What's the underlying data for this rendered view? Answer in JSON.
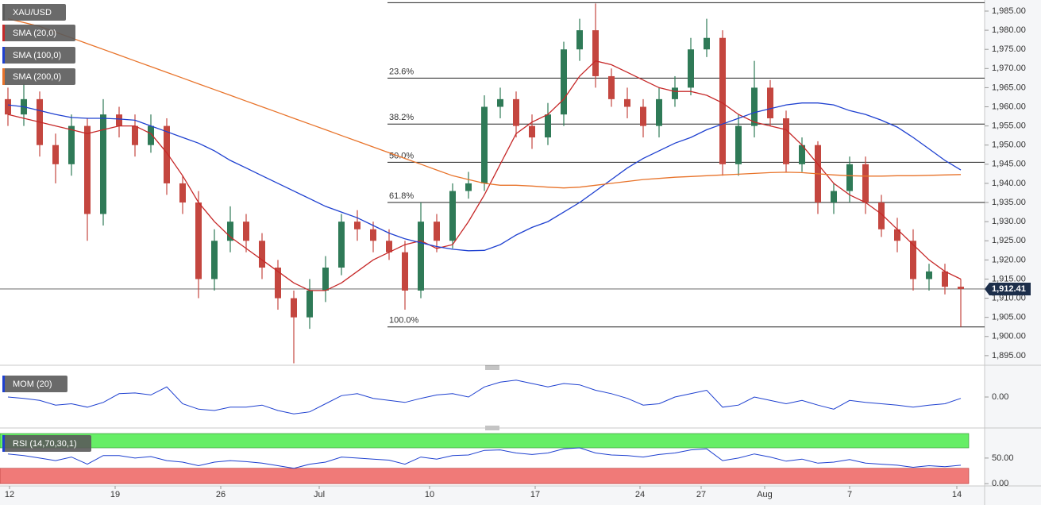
{
  "chart_data": {
    "type": "candlestick",
    "symbol": "XAU/USD",
    "up_color": "#2f7a57",
    "down_color": "#c4463f",
    "xlim": [
      0,
      62
    ],
    "xticks": [
      {
        "value": 0.6,
        "label": "12"
      },
      {
        "value": 7.25,
        "label": "19"
      },
      {
        "value": 13.9,
        "label": "26"
      },
      {
        "value": 20.1,
        "label": "Jul"
      },
      {
        "value": 27.05,
        "label": "10"
      },
      {
        "value": 33.7,
        "label": "17"
      },
      {
        "value": 40.3,
        "label": "24"
      },
      {
        "value": 44.15,
        "label": "27"
      },
      {
        "value": 48.15,
        "label": "Aug"
      },
      {
        "value": 53.5,
        "label": "7"
      },
      {
        "value": 60.25,
        "label": "14"
      }
    ],
    "ylim": [
      1892.9,
      1987.9
    ],
    "yticks": [
      {
        "value": 1895,
        "label": "1,895.00"
      },
      {
        "value": 1900,
        "label": "1,900.00"
      },
      {
        "value": 1905,
        "label": "1,905.00"
      },
      {
        "value": 1910,
        "label": "1,910.00"
      },
      {
        "value": 1915,
        "label": "1,915.00"
      },
      {
        "value": 1920,
        "label": "1,920.00"
      },
      {
        "value": 1925,
        "label": "1,925.00"
      },
      {
        "value": 1930,
        "label": "1,930.00"
      },
      {
        "value": 1935,
        "label": "1,935.00"
      },
      {
        "value": 1940,
        "label": "1,940.00"
      },
      {
        "value": 1945,
        "label": "1,945.00"
      },
      {
        "value": 1950,
        "label": "1,950.00"
      },
      {
        "value": 1955,
        "label": "1,955.00"
      },
      {
        "value": 1960,
        "label": "1,960.00"
      },
      {
        "value": 1965,
        "label": "1,965.00"
      },
      {
        "value": 1970,
        "label": "1,970.00"
      },
      {
        "value": 1975,
        "label": "1,975.00"
      },
      {
        "value": 1980,
        "label": "1,980.00"
      },
      {
        "value": 1985,
        "label": "1,985.00"
      }
    ],
    "open": [
      1962,
      1958,
      1962,
      1950,
      1945,
      1955,
      1932,
      1958,
      1955,
      1950,
      1955,
      1940,
      1935,
      1915,
      1925,
      1930,
      1925,
      1918,
      1910,
      1905,
      1912,
      1918,
      1930,
      1928,
      1925,
      1922,
      1912,
      1930,
      1925,
      1938,
      1940,
      1960,
      1962,
      1955,
      1952,
      1958,
      1975,
      1980,
      1968,
      1962,
      1960,
      1955,
      1962,
      1965,
      1975,
      1978,
      1945,
      1955,
      1965,
      1957,
      1945,
      1950,
      1935,
      1938,
      1945,
      1935,
      1928,
      1925,
      1915,
      1917,
      1913
    ],
    "high": [
      1965,
      1966,
      1964,
      1953,
      1958,
      1957,
      1962,
      1960,
      1958,
      1958,
      1957,
      1942,
      1938,
      1928,
      1934,
      1932,
      1927,
      1920,
      1912,
      1915,
      1921,
      1932,
      1933,
      1930,
      1928,
      1925,
      1935,
      1932,
      1940,
      1943,
      1963,
      1965,
      1964,
      1958,
      1961,
      1977,
      1983,
      1987,
      1970,
      1965,
      1962,
      1965,
      1968,
      1978,
      1983,
      1980,
      1958,
      1972,
      1967,
      1959,
      1952,
      1951,
      1940,
      1947,
      1947,
      1937,
      1931,
      1928,
      1919,
      1919,
      1915
    ],
    "low": [
      1955,
      1955,
      1947,
      1940,
      1942,
      1925,
      1929,
      1952,
      1947,
      1948,
      1937,
      1932,
      1910,
      1912,
      1922,
      1922,
      1915,
      1907,
      1893,
      1902,
      1909,
      1916,
      1925,
      1922,
      1920,
      1907,
      1910,
      1922,
      1923,
      1936,
      1938,
      1957,
      1952,
      1949,
      1950,
      1955,
      1972,
      1965,
      1960,
      1957,
      1952,
      1952,
      1960,
      1963,
      1973,
      1942,
      1942,
      1952,
      1955,
      1943,
      1943,
      1932,
      1932,
      1935,
      1932,
      1926,
      1922,
      1912,
      1912,
      1911,
      1902.5
    ],
    "close": [
      1958,
      1962,
      1950,
      1945,
      1955,
      1932,
      1958,
      1955,
      1950,
      1955,
      1940,
      1935,
      1915,
      1925,
      1930,
      1925,
      1918,
      1910,
      1905,
      1912,
      1918,
      1930,
      1928,
      1925,
      1922,
      1912,
      1930,
      1925,
      1938,
      1940,
      1960,
      1962,
      1955,
      1952,
      1958,
      1975,
      1980,
      1968,
      1962,
      1960,
      1955,
      1962,
      1965,
      1975,
      1978,
      1945,
      1955,
      1965,
      1957,
      1945,
      1950,
      1935,
      1938,
      1945,
      1935,
      1928,
      1925,
      1915,
      1917,
      1913,
      1912.41
    ],
    "series": [
      {
        "name": "SMA (20,0)",
        "color": "#c62828",
        "values": [
          1958,
          1957,
          1956,
          1955,
          1954,
          1953,
          1954,
          1955,
          1955,
          1953,
          1948,
          1942,
          1935,
          1930,
          1926,
          1923,
          1920,
          1917,
          1914,
          1912,
          1912,
          1914,
          1917,
          1920,
          1922,
          1924,
          1925,
          1923,
          1924,
          1930,
          1937,
          1945,
          1953,
          1956,
          1958,
          1962,
          1968,
          1972,
          1971,
          1969,
          1967,
          1965,
          1964,
          1964,
          1963,
          1961,
          1958,
          1956,
          1955,
          1954,
          1950,
          1945,
          1940,
          1937,
          1935,
          1932,
          1928,
          1924,
          1920,
          1917,
          1915
        ]
      },
      {
        "name": "SMA (100,0)",
        "color": "#1e40d0",
        "values": [
          1960.5,
          1960,
          1959,
          1958,
          1957.2,
          1957,
          1957,
          1956.8,
          1956.5,
          1955,
          1953.5,
          1952,
          1950.5,
          1948.5,
          1946,
          1944,
          1942,
          1940,
          1938,
          1936,
          1934,
          1932.5,
          1931,
          1929,
          1927,
          1925.5,
          1924.5,
          1923.5,
          1922.8,
          1922.4,
          1922.5,
          1924,
          1926.5,
          1928.5,
          1930,
          1932.5,
          1935,
          1938,
          1941,
          1944,
          1946.5,
          1948.5,
          1950.5,
          1952,
          1954,
          1955.5,
          1957,
          1958.5,
          1959.5,
          1960.5,
          1961,
          1961,
          1960.5,
          1959,
          1958,
          1956.5,
          1954.7,
          1952,
          1949,
          1946,
          1943.5
        ]
      },
      {
        "name": "SMA (200,0)",
        "color": "#e8732a",
        "values": [
          1983,
          1982,
          1981,
          1979.5,
          1978,
          1976.5,
          1975,
          1973.5,
          1972,
          1970.5,
          1969,
          1967.5,
          1966,
          1964.5,
          1963,
          1961.5,
          1960,
          1958.5,
          1957,
          1955.5,
          1954,
          1952.5,
          1951,
          1949.5,
          1948,
          1946.5,
          1945,
          1943.5,
          1942,
          1941,
          1940,
          1939.5,
          1939.5,
          1939.3,
          1939,
          1938.8,
          1939,
          1939.5,
          1940,
          1940.5,
          1941,
          1941.3,
          1941.6,
          1941.8,
          1942,
          1942.2,
          1942.4,
          1942.6,
          1942.8,
          1942.9,
          1942.8,
          1942.5,
          1942.2,
          1942,
          1941.9,
          1941.9,
          1942,
          1942,
          1942.1,
          1942.2,
          1942.3
        ]
      }
    ],
    "fibonacci": {
      "start_x": 24.4,
      "levels": [
        {
          "value": 1987.2
        },
        {
          "value": 1967.5,
          "label": "23.6%"
        },
        {
          "value": 1955.5,
          "label": "38.2%"
        },
        {
          "value": 1945.5,
          "label": "50.0%"
        },
        {
          "value": 1935,
          "label": "61.8%"
        },
        {
          "value": 1902.5,
          "label": "100.0%"
        }
      ]
    },
    "last_price": {
      "value": 1912.41,
      "label": "1,912.41"
    },
    "panels": [
      {
        "type": "line",
        "name": "MOM (20)",
        "color": "#1e40d0",
        "ylim": [
          -40,
          40
        ],
        "yticks": [
          {
            "value": 0,
            "label": "0.00"
          }
        ],
        "values": [
          0,
          -2,
          -5,
          -12,
          -10,
          -15,
          -8,
          5,
          6,
          3,
          15,
          -10,
          -18,
          -20,
          -15,
          -15,
          -12,
          -20,
          -25,
          -22,
          -10,
          2,
          5,
          -2,
          -5,
          -8,
          -2,
          3,
          5,
          0,
          15,
          22,
          25,
          20,
          15,
          20,
          18,
          10,
          5,
          -2,
          -12,
          -10,
          0,
          5,
          10,
          -15,
          -12,
          0,
          -5,
          -10,
          -5,
          -12,
          -18,
          -5,
          -8,
          -10,
          -12,
          -15,
          -12,
          -10,
          -2
        ]
      },
      {
        "type": "line",
        "name": "RSI (14,70,30,1)",
        "color": "#1e40d0",
        "ylim": [
          -3,
          98
        ],
        "yticks": [
          {
            "value": 50,
            "label": "50.00"
          },
          {
            "value": 0,
            "label": "0.00"
          }
        ],
        "upper_band": 70,
        "lower_band": 30,
        "upper_color": "#66ee66",
        "lower_color": "#f07a78",
        "values": [
          58,
          55,
          50,
          45,
          52,
          38,
          55,
          55,
          50,
          53,
          45,
          42,
          35,
          42,
          45,
          43,
          40,
          35,
          30,
          38,
          42,
          52,
          50,
          48,
          46,
          38,
          52,
          48,
          55,
          56,
          65,
          66,
          60,
          57,
          60,
          68,
          70,
          60,
          56,
          55,
          52,
          57,
          60,
          66,
          68,
          45,
          50,
          58,
          52,
          44,
          48,
          40,
          42,
          47,
          40,
          38,
          36,
          32,
          35,
          33,
          36
        ]
      }
    ]
  }
}
